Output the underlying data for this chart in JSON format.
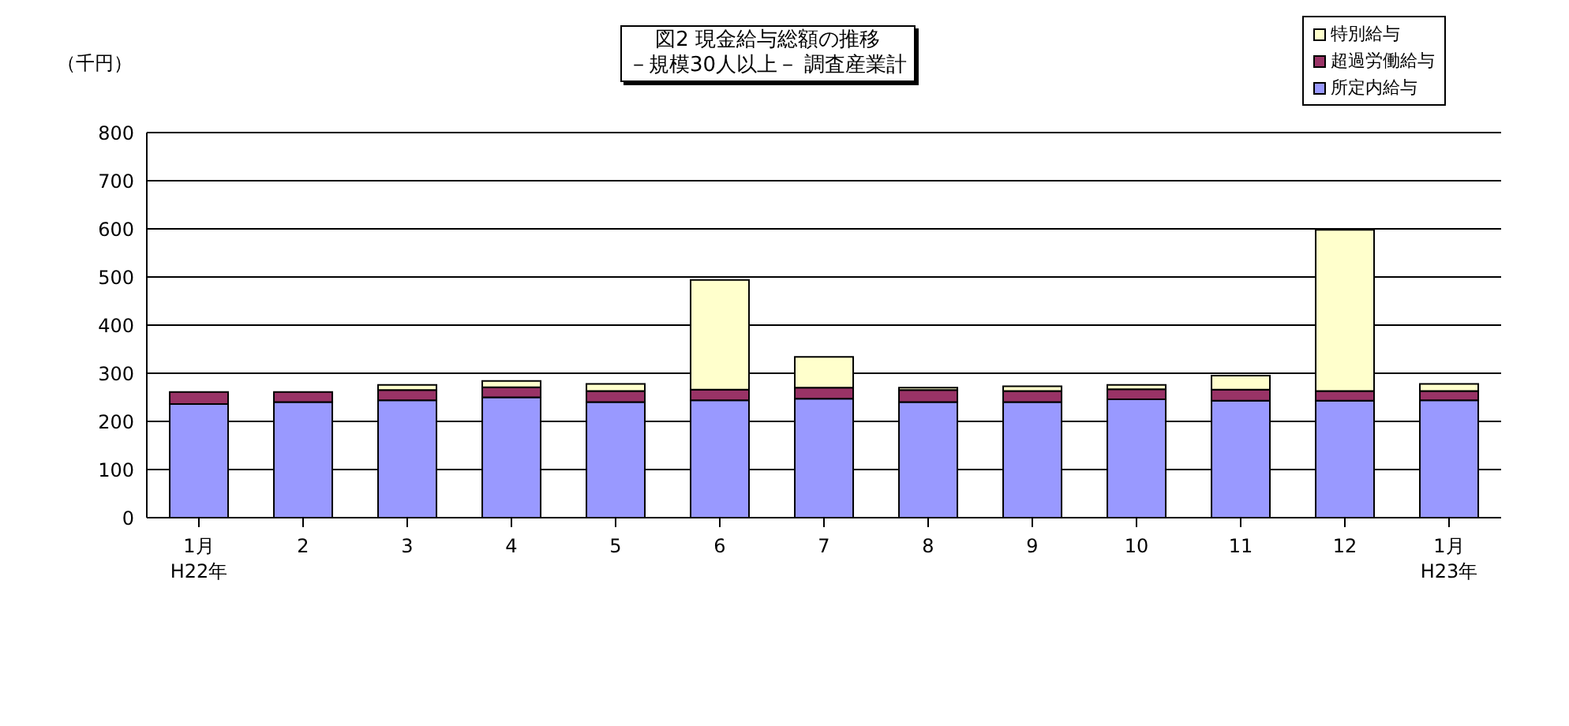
{
  "chart_data": {
    "type": "bar",
    "title": "図2 現金給与総額の推移",
    "subtitle": "－規模30人以上－ 調査産業計",
    "ylabel": "（千円）",
    "stacked": true,
    "categories": [
      "1月\nH22年",
      "2",
      "3",
      "4",
      "5",
      "6",
      "7",
      "8",
      "9",
      "10",
      "11",
      "12",
      "1月\nH23年"
    ],
    "series": [
      {
        "name": "所定内給与",
        "color": "#9999ff",
        "values": [
          236,
          240,
          244,
          250,
          240,
          244,
          247,
          240,
          240,
          246,
          243,
          243,
          244
        ]
      },
      {
        "name": "超過労働給与",
        "color": "#993366",
        "values": [
          25,
          21,
          21,
          21,
          23,
          22,
          23,
          25,
          23,
          21,
          23,
          20,
          19
        ]
      },
      {
        "name": "特別給与",
        "color": "#ffffcc",
        "values": [
          0,
          0,
          11,
          13,
          15,
          228,
          64,
          5,
          10,
          9,
          29,
          335,
          15
        ]
      }
    ],
    "ylim": [
      0,
      800
    ],
    "yticks": [
      0,
      100,
      200,
      300,
      400,
      500,
      600,
      700,
      800
    ],
    "grid": "y",
    "legend": "top right"
  }
}
